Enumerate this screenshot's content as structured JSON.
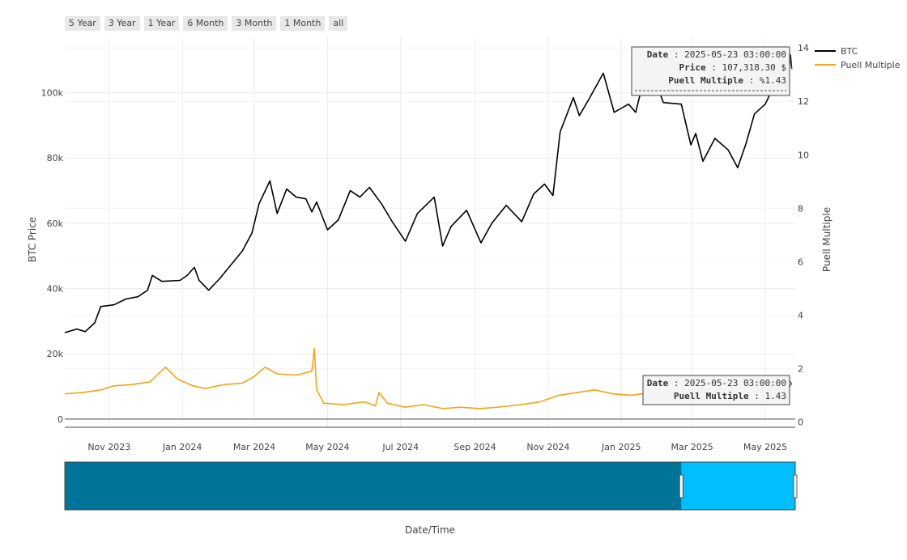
{
  "range_selector": [
    "5 Year",
    "3 Year",
    "1 Year",
    "6 Month",
    "3 Month",
    "1 Month",
    "all"
  ],
  "chart_data": {
    "type": "line",
    "title": "",
    "xlabel": "Date/Time",
    "ylabel": "BTC Price",
    "y2label": "Puell Multiple",
    "x_range": [
      "2023-09-25",
      "2025-05-26"
    ],
    "x_ticks": [
      {
        "date": "2023-11-01",
        "label": "Nov 2023"
      },
      {
        "date": "2024-01-01",
        "label": "Jan 2024"
      },
      {
        "date": "2024-03-01",
        "label": "Mar 2024"
      },
      {
        "date": "2024-05-01",
        "label": "May 2024"
      },
      {
        "date": "2024-07-01",
        "label": "Jul 2024"
      },
      {
        "date": "2024-09-01",
        "label": "Sep 2024"
      },
      {
        "date": "2024-11-01",
        "label": "Nov 2024"
      },
      {
        "date": "2025-01-01",
        "label": "Jan 2025"
      },
      {
        "date": "2025-03-01",
        "label": "Mar 2025"
      },
      {
        "date": "2025-05-01",
        "label": "May 2025"
      }
    ],
    "y_range": [
      -2500,
      117000
    ],
    "y_ticks": [
      {
        "v": 0,
        "label": "0"
      },
      {
        "v": 20000,
        "label": "20k"
      },
      {
        "v": 40000,
        "label": "40k"
      },
      {
        "v": 60000,
        "label": "60k"
      },
      {
        "v": 80000,
        "label": "80k"
      },
      {
        "v": 100000,
        "label": "100k"
      }
    ],
    "y2_range": [
      -0.2,
      14.4
    ],
    "y2_ticks": [
      0,
      2,
      4,
      6,
      8,
      10,
      12,
      14
    ],
    "grid": true,
    "legend_position": "top-right",
    "series": [
      {
        "name": "BTC",
        "axis": "y",
        "color": "#000000",
        "points": [
          [
            "2023-09-25",
            26500
          ],
          [
            "2023-10-05",
            27600
          ],
          [
            "2023-10-12",
            26800
          ],
          [
            "2023-10-20",
            29500
          ],
          [
            "2023-10-25",
            34500
          ],
          [
            "2023-11-05",
            35000
          ],
          [
            "2023-11-15",
            36800
          ],
          [
            "2023-11-25",
            37500
          ],
          [
            "2023-12-03",
            39500
          ],
          [
            "2023-12-07",
            44000
          ],
          [
            "2023-12-15",
            42200
          ],
          [
            "2023-12-30",
            42500
          ],
          [
            "2024-01-05",
            44000
          ],
          [
            "2024-01-11",
            46500
          ],
          [
            "2024-01-15",
            42500
          ],
          [
            "2024-01-23",
            39500
          ],
          [
            "2024-02-01",
            43000
          ],
          [
            "2024-02-10",
            47000
          ],
          [
            "2024-02-20",
            51500
          ],
          [
            "2024-02-28",
            57000
          ],
          [
            "2024-03-05",
            66000
          ],
          [
            "2024-03-14",
            73000
          ],
          [
            "2024-03-20",
            63000
          ],
          [
            "2024-03-28",
            70500
          ],
          [
            "2024-04-05",
            68000
          ],
          [
            "2024-04-13",
            67500
          ],
          [
            "2024-04-18",
            63500
          ],
          [
            "2024-04-22",
            66500
          ],
          [
            "2024-05-01",
            58000
          ],
          [
            "2024-05-10",
            61000
          ],
          [
            "2024-05-20",
            70000
          ],
          [
            "2024-05-28",
            68000
          ],
          [
            "2024-06-05",
            71000
          ],
          [
            "2024-06-15",
            66000
          ],
          [
            "2024-06-24",
            60500
          ],
          [
            "2024-07-05",
            54500
          ],
          [
            "2024-07-15",
            63000
          ],
          [
            "2024-07-29",
            68000
          ],
          [
            "2024-08-05",
            53000
          ],
          [
            "2024-08-12",
            59000
          ],
          [
            "2024-08-25",
            64000
          ],
          [
            "2024-09-06",
            54000
          ],
          [
            "2024-09-15",
            60000
          ],
          [
            "2024-09-27",
            65500
          ],
          [
            "2024-10-10",
            60500
          ],
          [
            "2024-10-20",
            69000
          ],
          [
            "2024-10-29",
            72000
          ],
          [
            "2024-11-05",
            68500
          ],
          [
            "2024-11-11",
            88000
          ],
          [
            "2024-11-22",
            98500
          ],
          [
            "2024-11-27",
            93000
          ],
          [
            "2024-12-05",
            98000
          ],
          [
            "2024-12-17",
            106000
          ],
          [
            "2024-12-26",
            94000
          ],
          [
            "2025-01-07",
            96500
          ],
          [
            "2025-01-13",
            94000
          ],
          [
            "2025-01-21",
            106000
          ],
          [
            "2025-01-31",
            102000
          ],
          [
            "2025-02-05",
            97000
          ],
          [
            "2025-02-20",
            96500
          ],
          [
            "2025-02-28",
            84000
          ],
          [
            "2025-03-04",
            87500
          ],
          [
            "2025-03-10",
            79000
          ],
          [
            "2025-03-20",
            86000
          ],
          [
            "2025-03-31",
            82500
          ],
          [
            "2025-04-08",
            77000
          ],
          [
            "2025-04-15",
            84500
          ],
          [
            "2025-04-22",
            93500
          ],
          [
            "2025-05-01",
            96500
          ],
          [
            "2025-05-10",
            103500
          ],
          [
            "2025-05-20",
            106000
          ],
          [
            "2025-05-22",
            111500
          ],
          [
            "2025-05-23",
            107318.3
          ]
        ]
      },
      {
        "name": "Puell Multiple",
        "axis": "y2",
        "color": "#f5a31a",
        "points": [
          [
            "2023-09-25",
            1.05
          ],
          [
            "2023-10-10",
            1.1
          ],
          [
            "2023-10-25",
            1.2
          ],
          [
            "2023-11-05",
            1.35
          ],
          [
            "2023-11-20",
            1.4
          ],
          [
            "2023-12-05",
            1.5
          ],
          [
            "2023-12-18",
            2.05
          ],
          [
            "2023-12-28",
            1.6
          ],
          [
            "2024-01-10",
            1.35
          ],
          [
            "2024-01-20",
            1.25
          ],
          [
            "2024-02-05",
            1.4
          ],
          [
            "2024-02-20",
            1.45
          ],
          [
            "2024-03-01",
            1.7
          ],
          [
            "2024-03-10",
            2.05
          ],
          [
            "2024-03-20",
            1.8
          ],
          [
            "2024-04-05",
            1.75
          ],
          [
            "2024-04-18",
            1.9
          ],
          [
            "2024-04-20",
            2.75
          ],
          [
            "2024-04-22",
            1.2
          ],
          [
            "2024-04-28",
            0.7
          ],
          [
            "2024-05-15",
            0.65
          ],
          [
            "2024-06-01",
            0.75
          ],
          [
            "2024-06-10",
            0.6
          ],
          [
            "2024-06-13",
            1.1
          ],
          [
            "2024-06-20",
            0.7
          ],
          [
            "2024-07-05",
            0.55
          ],
          [
            "2024-07-20",
            0.65
          ],
          [
            "2024-08-05",
            0.5
          ],
          [
            "2024-08-20",
            0.55
          ],
          [
            "2024-09-05",
            0.5
          ],
          [
            "2024-09-20",
            0.55
          ],
          [
            "2024-10-10",
            0.65
          ],
          [
            "2024-10-25",
            0.75
          ],
          [
            "2024-11-10",
            1.0
          ],
          [
            "2024-11-25",
            1.1
          ],
          [
            "2024-12-10",
            1.2
          ],
          [
            "2024-12-25",
            1.05
          ],
          [
            "2025-01-10",
            1.0
          ],
          [
            "2025-01-25",
            1.1
          ],
          [
            "2025-02-10",
            0.95
          ],
          [
            "2025-03-01",
            0.85
          ],
          [
            "2025-03-20",
            0.95
          ],
          [
            "2025-04-10",
            1.0
          ],
          [
            "2025-05-01",
            1.2
          ],
          [
            "2025-05-15",
            1.35
          ],
          [
            "2025-05-20",
            1.55
          ],
          [
            "2025-05-23",
            1.43
          ]
        ]
      }
    ],
    "tooltips": [
      {
        "rows": [
          [
            "Date",
            ": 2025-05-23 03:00:00"
          ],
          [
            "Price",
            ": 107,318.30 $"
          ],
          [
            "Puell Multiple",
            ": %1.43"
          ]
        ]
      },
      {
        "rows": [
          [
            "Date",
            ": 2025-05-23 03:00:00"
          ],
          [
            "Puell Multiple",
            ": 1.43"
          ]
        ]
      }
    ],
    "range_slider": {
      "selected_start": "2025-02-20",
      "selected_end": "2025-05-26",
      "colors": {
        "unselected": "#007399",
        "selected": "#00bfff"
      }
    }
  }
}
